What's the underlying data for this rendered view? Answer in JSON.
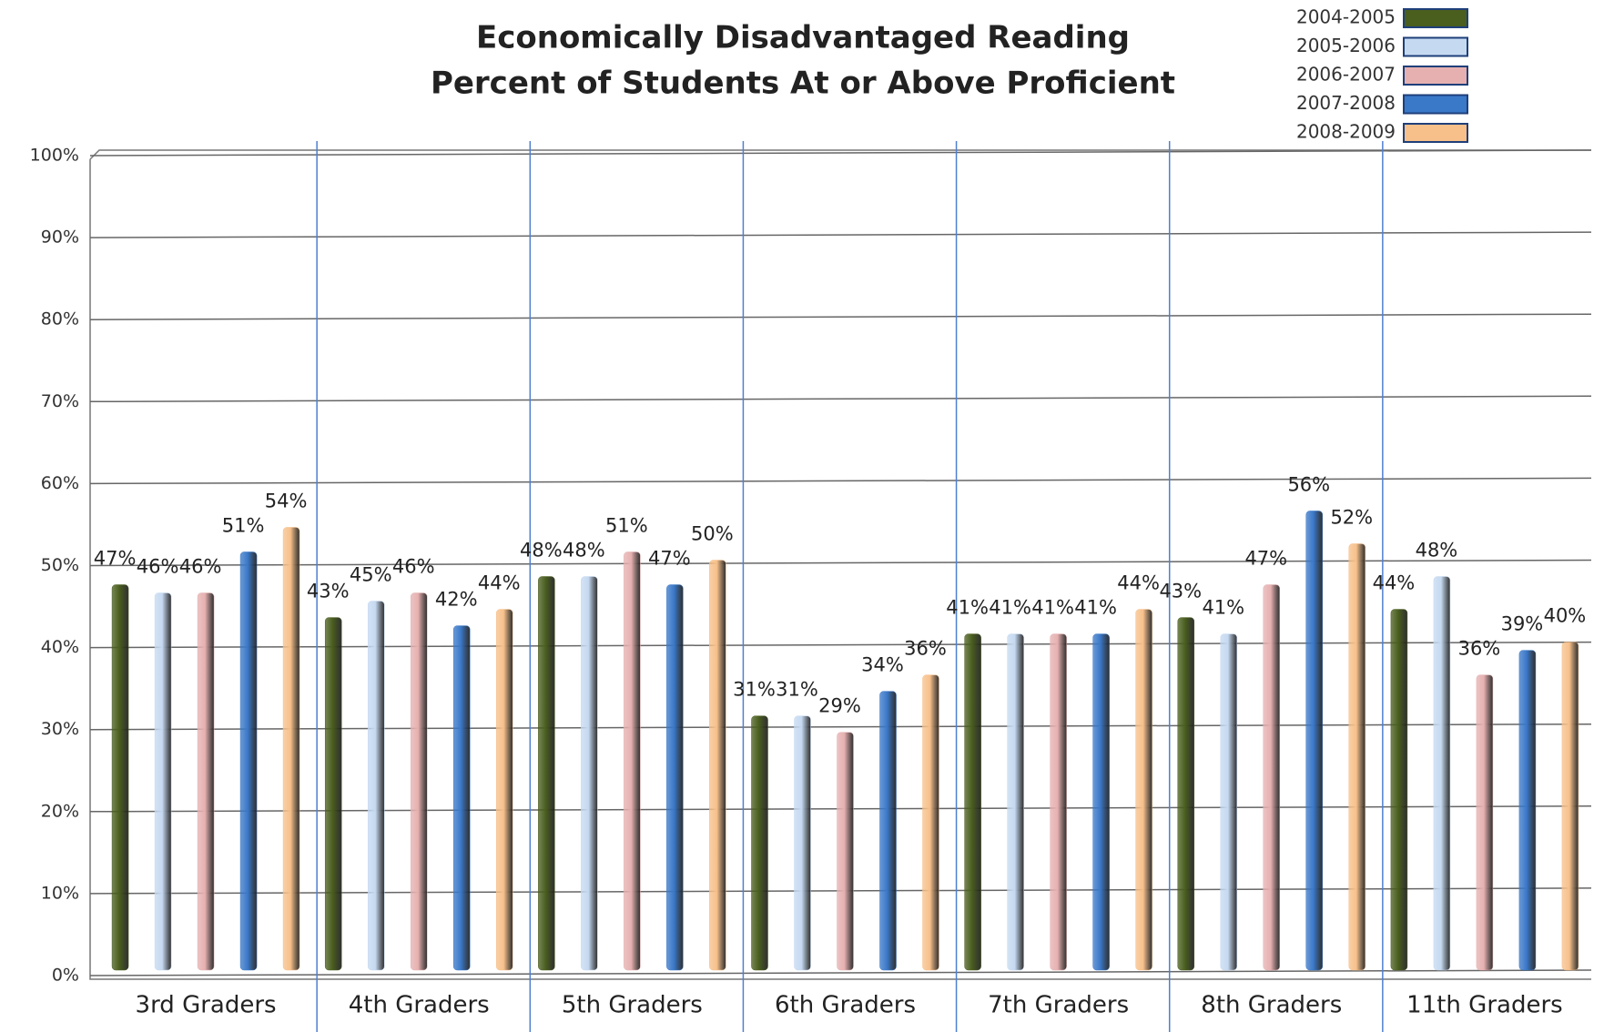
{
  "chart_data": {
    "type": "bar",
    "title": "Economically Disadvantaged Reading",
    "subtitle": "Percent of Students At or Above Proficient",
    "categories": [
      "3rd Graders",
      "4th Graders",
      "5th Graders",
      "6th Graders",
      "7th Graders",
      "8th Graders",
      "11th Graders"
    ],
    "series": [
      {
        "name": "2004-2005",
        "color": "#4a5e1e",
        "values": [
          47,
          43,
          48,
          31,
          41,
          43,
          44
        ],
        "value_labels": [
          "47%",
          "43%",
          "48%",
          "31%",
          "41%",
          "43%",
          "44%"
        ]
      },
      {
        "name": "2005-2006",
        "color": "#c5d9f1",
        "values": [
          46,
          45,
          48,
          31,
          41,
          41,
          48
        ],
        "value_labels": [
          "46%",
          "45%",
          "48%",
          "31%",
          "41%",
          "41%",
          "48%"
        ]
      },
      {
        "name": "2006-2007",
        "color": "#e6b0b0",
        "values": [
          46,
          46,
          51,
          29,
          41,
          47,
          36
        ],
        "value_labels": [
          "46%",
          "46%",
          "51%",
          "29%",
          "41%",
          "47%",
          "36%"
        ]
      },
      {
        "name": "2007-2008",
        "color": "#3a78c8",
        "values": [
          51,
          42,
          47,
          34,
          41,
          56,
          39
        ],
        "value_labels": [
          "51%",
          "42%",
          "47%",
          "34%",
          "41%",
          "56%",
          "39%"
        ]
      },
      {
        "name": "2008-2009",
        "color": "#f7c08a",
        "values": [
          54,
          44,
          50,
          36,
          44,
          52,
          40
        ],
        "value_labels": [
          "54%",
          "44%",
          "50%",
          "36%",
          "44%",
          "52%",
          "40%"
        ]
      }
    ],
    "ylim": [
      0,
      100
    ],
    "yticks": [
      {
        "value": 0,
        "label": "0%"
      },
      {
        "value": 10,
        "label": "10%"
      },
      {
        "value": 20,
        "label": "20%"
      },
      {
        "value": 30,
        "label": "30%"
      },
      {
        "value": 40,
        "label": "40%"
      },
      {
        "value": 50,
        "label": "50%"
      },
      {
        "value": 60,
        "label": "60%"
      },
      {
        "value": 70,
        "label": "70%"
      },
      {
        "value": 80,
        "label": "80%"
      },
      {
        "value": 90,
        "label": "90%"
      },
      {
        "value": 100,
        "label": "100%"
      }
    ],
    "grid": true,
    "legend": "top-right"
  }
}
